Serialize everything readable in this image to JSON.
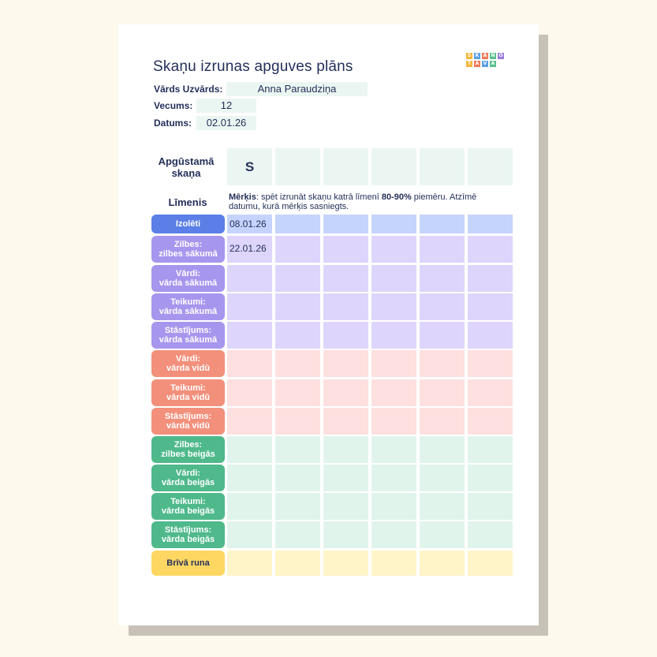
{
  "document": {
    "title": "Skaņu izrunas apguves plāns",
    "logo_letters": [
      "S",
      "K",
      "A",
      "N",
      "O",
      "T",
      "A",
      "V",
      "A"
    ],
    "logo_colors": [
      "#f4b63b",
      "#5aa0e8",
      "#f07a5a",
      "#59c08f",
      "#9b7be0",
      "#f4b63b",
      "#f07a5a",
      "#5aa0e8",
      "#59c08f"
    ]
  },
  "info": {
    "name_label": "Vārds Uzvārds:",
    "name_value": "Anna Paraudziņa",
    "age_label": "Vecums:",
    "age_value": "12",
    "date_label": "Datums:",
    "date_value": "02.01.26"
  },
  "table": {
    "sound_header": "Apgūstamā skaņa",
    "sounds": [
      "S",
      "",
      "",
      "",
      "",
      ""
    ],
    "level_header": "Līmenis",
    "goal_label": "Mērķis",
    "goal_text_1": ": spēt izrunāt skaņu katrā līmenī ",
    "goal_bold": "80-90%",
    "goal_text_2": " piemēru. Atzīmē datumu, kurā mērķis sasniegts.",
    "rows": [
      {
        "label": "Izolēti",
        "color": "#5b7fe6",
        "cell": "#c5d4fb",
        "values": [
          "08.01.26",
          "",
          "",
          "",
          "",
          ""
        ]
      },
      {
        "label": "Zilbes:\nzilbes sākumā",
        "color": "#a796ee",
        "cell": "#ddd5fc",
        "values": [
          "22.01.26",
          "",
          "",
          "",
          "",
          ""
        ]
      },
      {
        "label": "Vārdi:\nvārda sākumā",
        "color": "#a796ee",
        "cell": "#ddd5fc",
        "values": [
          "",
          "",
          "",
          "",
          "",
          ""
        ]
      },
      {
        "label": "Teikumi:\nvārda sākumā",
        "color": "#a796ee",
        "cell": "#ddd5fc",
        "values": [
          "",
          "",
          "",
          "",
          "",
          ""
        ]
      },
      {
        "label": "Stāstījums:\nvārda sākumā",
        "color": "#a796ee",
        "cell": "#ddd5fc",
        "values": [
          "",
          "",
          "",
          "",
          "",
          ""
        ]
      },
      {
        "label": "Vārdi:\nvārda vidū",
        "color": "#f2907c",
        "cell": "#fde0df",
        "values": [
          "",
          "",
          "",
          "",
          "",
          ""
        ]
      },
      {
        "label": "Teikumi:\nvārda vidū",
        "color": "#f2907c",
        "cell": "#fde0df",
        "values": [
          "",
          "",
          "",
          "",
          "",
          ""
        ]
      },
      {
        "label": "Stāstījums:\nvārda vidū",
        "color": "#f2907c",
        "cell": "#fde0df",
        "values": [
          "",
          "",
          "",
          "",
          "",
          ""
        ]
      },
      {
        "label": "Zilbes:\nzilbes beigās",
        "color": "#4fb98b",
        "cell": "#e0f4ec",
        "values": [
          "",
          "",
          "",
          "",
          "",
          ""
        ]
      },
      {
        "label": "Vārdi:\nvārda beigās",
        "color": "#4fb98b",
        "cell": "#e0f4ec",
        "values": [
          "",
          "",
          "",
          "",
          "",
          ""
        ]
      },
      {
        "label": "Teikumi:\nvārda beigās",
        "color": "#4fb98b",
        "cell": "#e0f4ec",
        "values": [
          "",
          "",
          "",
          "",
          "",
          ""
        ]
      },
      {
        "label": "Stāstījums:\nvārda beigās",
        "color": "#4fb98b",
        "cell": "#e0f4ec",
        "values": [
          "",
          "",
          "",
          "",
          "",
          ""
        ]
      },
      {
        "label": "Brīvā runa",
        "color": "#fdd762",
        "cell": "#fff5c8",
        "values": [
          "",
          "",
          "",
          "",
          "",
          ""
        ]
      }
    ]
  }
}
